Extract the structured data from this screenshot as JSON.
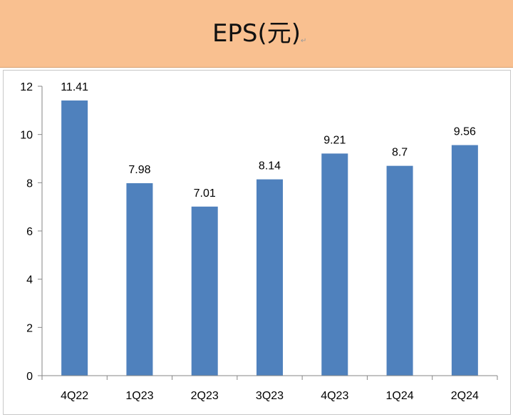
{
  "header": {
    "title": "EPS(元)",
    "return_mark": "↵"
  },
  "colors": {
    "header_bg": "#f9c090",
    "bar": "#4f81bd"
  },
  "chart_data": {
    "type": "bar",
    "title": "EPS(元)",
    "categories": [
      "4Q22",
      "1Q23",
      "2Q23",
      "3Q23",
      "4Q23",
      "1Q24",
      "2Q24"
    ],
    "values": [
      11.41,
      7.98,
      7.01,
      8.14,
      9.21,
      8.7,
      9.56
    ],
    "data_labels": [
      "11.41",
      "7.98",
      "7.01",
      "8.14",
      "9.21",
      "8.7",
      "9.56"
    ],
    "xlabel": "",
    "ylabel": "",
    "ylim": [
      0,
      12
    ],
    "yticks": [
      0,
      2,
      4,
      6,
      8,
      10,
      12
    ],
    "grid": false,
    "legend": "none"
  }
}
